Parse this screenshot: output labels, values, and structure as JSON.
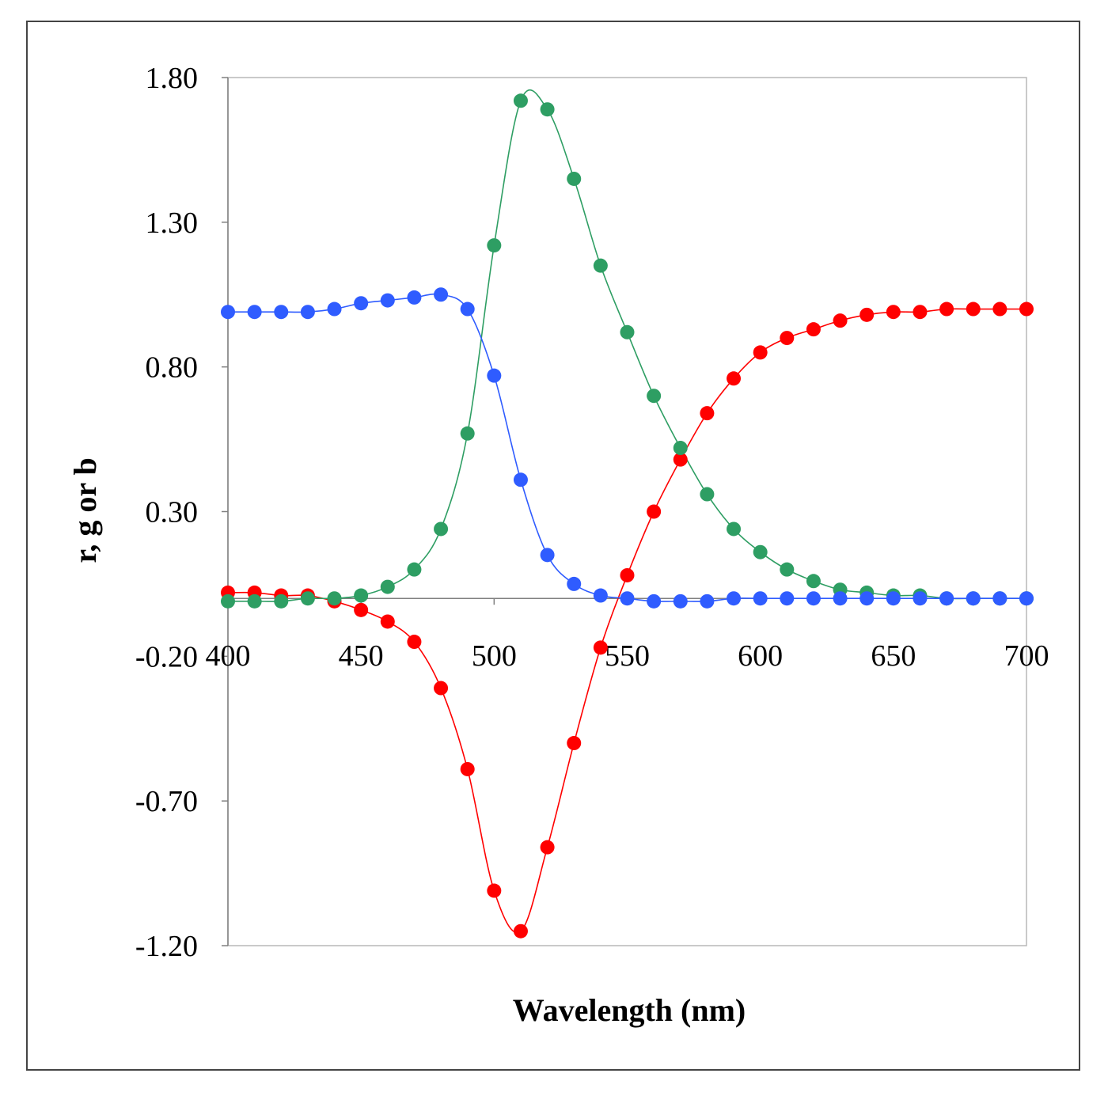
{
  "chart_data": {
    "type": "scatter",
    "xlabel": "Wavelength (nm)",
    "ylabel": "r, g or b",
    "xlim": [
      400,
      700
    ],
    "ylim": [
      -1.2,
      1.8
    ],
    "x_ticks": [
      400,
      450,
      500,
      550,
      600,
      650,
      700
    ],
    "x_tick_labels": [
      "400",
      "450",
      "500",
      "550",
      "600",
      "650",
      "700"
    ],
    "y_ticks": [
      1.8,
      1.3,
      0.8,
      0.3,
      -0.2,
      -0.7,
      -1.2
    ],
    "y_tick_labels": [
      "1.80",
      "1.30",
      "0.80",
      "0.30",
      "-0.20",
      "-0.70",
      "-1.20"
    ],
    "grid": false,
    "legend": "none",
    "x": [
      400,
      410,
      420,
      430,
      440,
      450,
      460,
      470,
      480,
      490,
      500,
      510,
      520,
      530,
      540,
      550,
      560,
      570,
      580,
      590,
      600,
      610,
      620,
      630,
      640,
      650,
      660,
      670,
      680,
      690,
      700
    ],
    "series": [
      {
        "color": "#ff0000",
        "values": [
          0.02,
          0.02,
          0.01,
          0.01,
          -0.01,
          -0.04,
          -0.08,
          -0.15,
          -0.31,
          -0.59,
          -1.01,
          -1.15,
          -0.86,
          -0.5,
          -0.17,
          0.08,
          0.3,
          0.48,
          0.64,
          0.76,
          0.85,
          0.9,
          0.93,
          0.96,
          0.98,
          0.99,
          0.99,
          1.0,
          1.0,
          1.0,
          1.0
        ]
      },
      {
        "color": "#2e9e63",
        "values": [
          -0.01,
          -0.01,
          -0.01,
          0.0,
          0.0,
          0.01,
          0.04,
          0.1,
          0.24,
          0.57,
          1.22,
          1.72,
          1.69,
          1.45,
          1.15,
          0.92,
          0.7,
          0.52,
          0.36,
          0.24,
          0.16,
          0.1,
          0.06,
          0.03,
          0.02,
          0.01,
          0.01,
          0.0,
          0.0,
          0.0,
          0.0
        ]
      },
      {
        "color": "#2f5cff",
        "values": [
          0.99,
          0.99,
          0.99,
          0.99,
          1.0,
          1.02,
          1.03,
          1.04,
          1.05,
          1.0,
          0.77,
          0.41,
          0.15,
          0.05,
          0.01,
          0.0,
          -0.01,
          -0.01,
          -0.01,
          0.0,
          0.0,
          0.0,
          0.0,
          0.0,
          0.0,
          0.0,
          0.0,
          0.0,
          0.0,
          0.0,
          0.0
        ]
      }
    ]
  }
}
